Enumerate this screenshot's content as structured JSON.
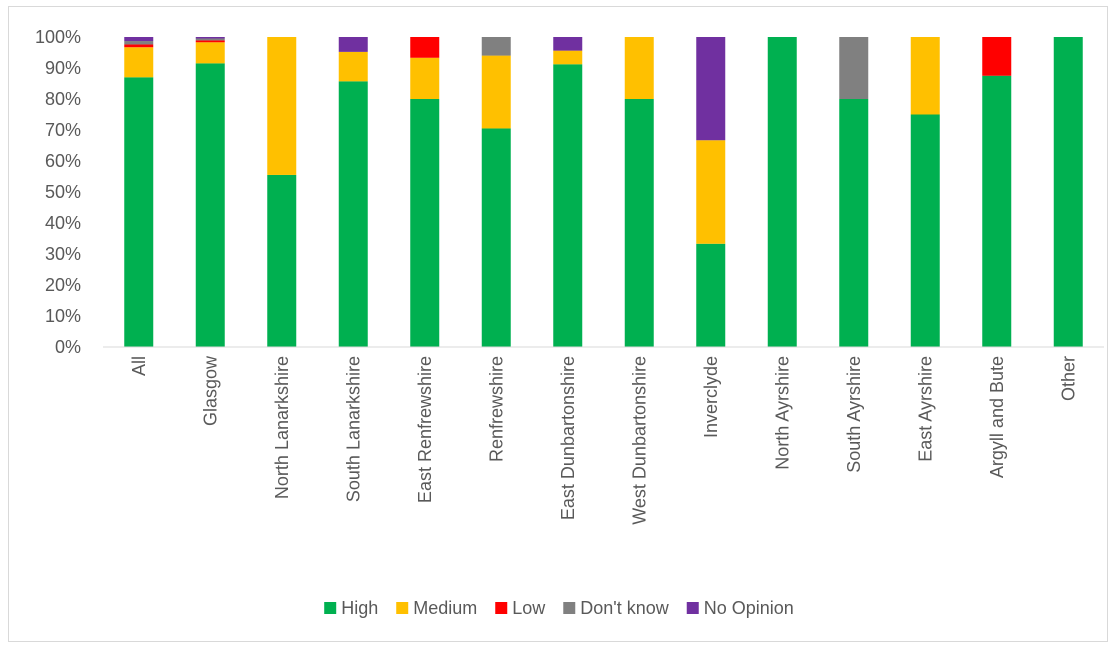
{
  "chart_data": {
    "type": "bar",
    "stacked": true,
    "percent": true,
    "categories": [
      "All",
      "Glasgow",
      "North Lanarkshire",
      "South Lanarkshire",
      "East Renfrewshire",
      "Renfrewshire",
      "East Dunbartonshire",
      "West Dunbartonshire",
      "Inverclyde",
      "North Ayrshire",
      "South Ayrshire",
      "East Ayrshire",
      "Argyll and Bute",
      "Other"
    ],
    "series": [
      {
        "name": "High",
        "color": "#00b050",
        "values": [
          87,
          91.5,
          55.5,
          85.7,
          80,
          70.5,
          91.2,
          80,
          33.3,
          100,
          80,
          75,
          87.5,
          100
        ]
      },
      {
        "name": "Medium",
        "color": "#ffc000",
        "values": [
          9.7,
          6.8,
          44.5,
          9.5,
          13.3,
          23.5,
          4.4,
          20,
          33.4,
          0,
          0,
          25,
          0,
          0
        ]
      },
      {
        "name": "Low",
        "color": "#ff0000",
        "values": [
          0.9,
          0.6,
          0,
          0,
          6.7,
          0,
          0,
          0,
          0,
          0,
          0,
          0,
          12.5,
          0
        ]
      },
      {
        "name": "Don't know",
        "color": "#808080",
        "values": [
          1.1,
          0.6,
          0,
          0,
          0,
          6,
          0,
          0,
          0,
          0,
          20,
          0,
          0,
          0
        ]
      },
      {
        "name": "No Opinion",
        "color": "#7030a0",
        "values": [
          1.3,
          0.5,
          0,
          4.8,
          0,
          0,
          4.4,
          0,
          33.3,
          0,
          0,
          0,
          0,
          0
        ]
      }
    ],
    "yticks": [
      "0%",
      "10%",
      "20%",
      "30%",
      "40%",
      "50%",
      "60%",
      "70%",
      "80%",
      "90%",
      "100%"
    ],
    "ylim": [
      0,
      100
    ],
    "grid": false,
    "legend": "bottom",
    "title": "",
    "xlabel": "",
    "ylabel": ""
  }
}
